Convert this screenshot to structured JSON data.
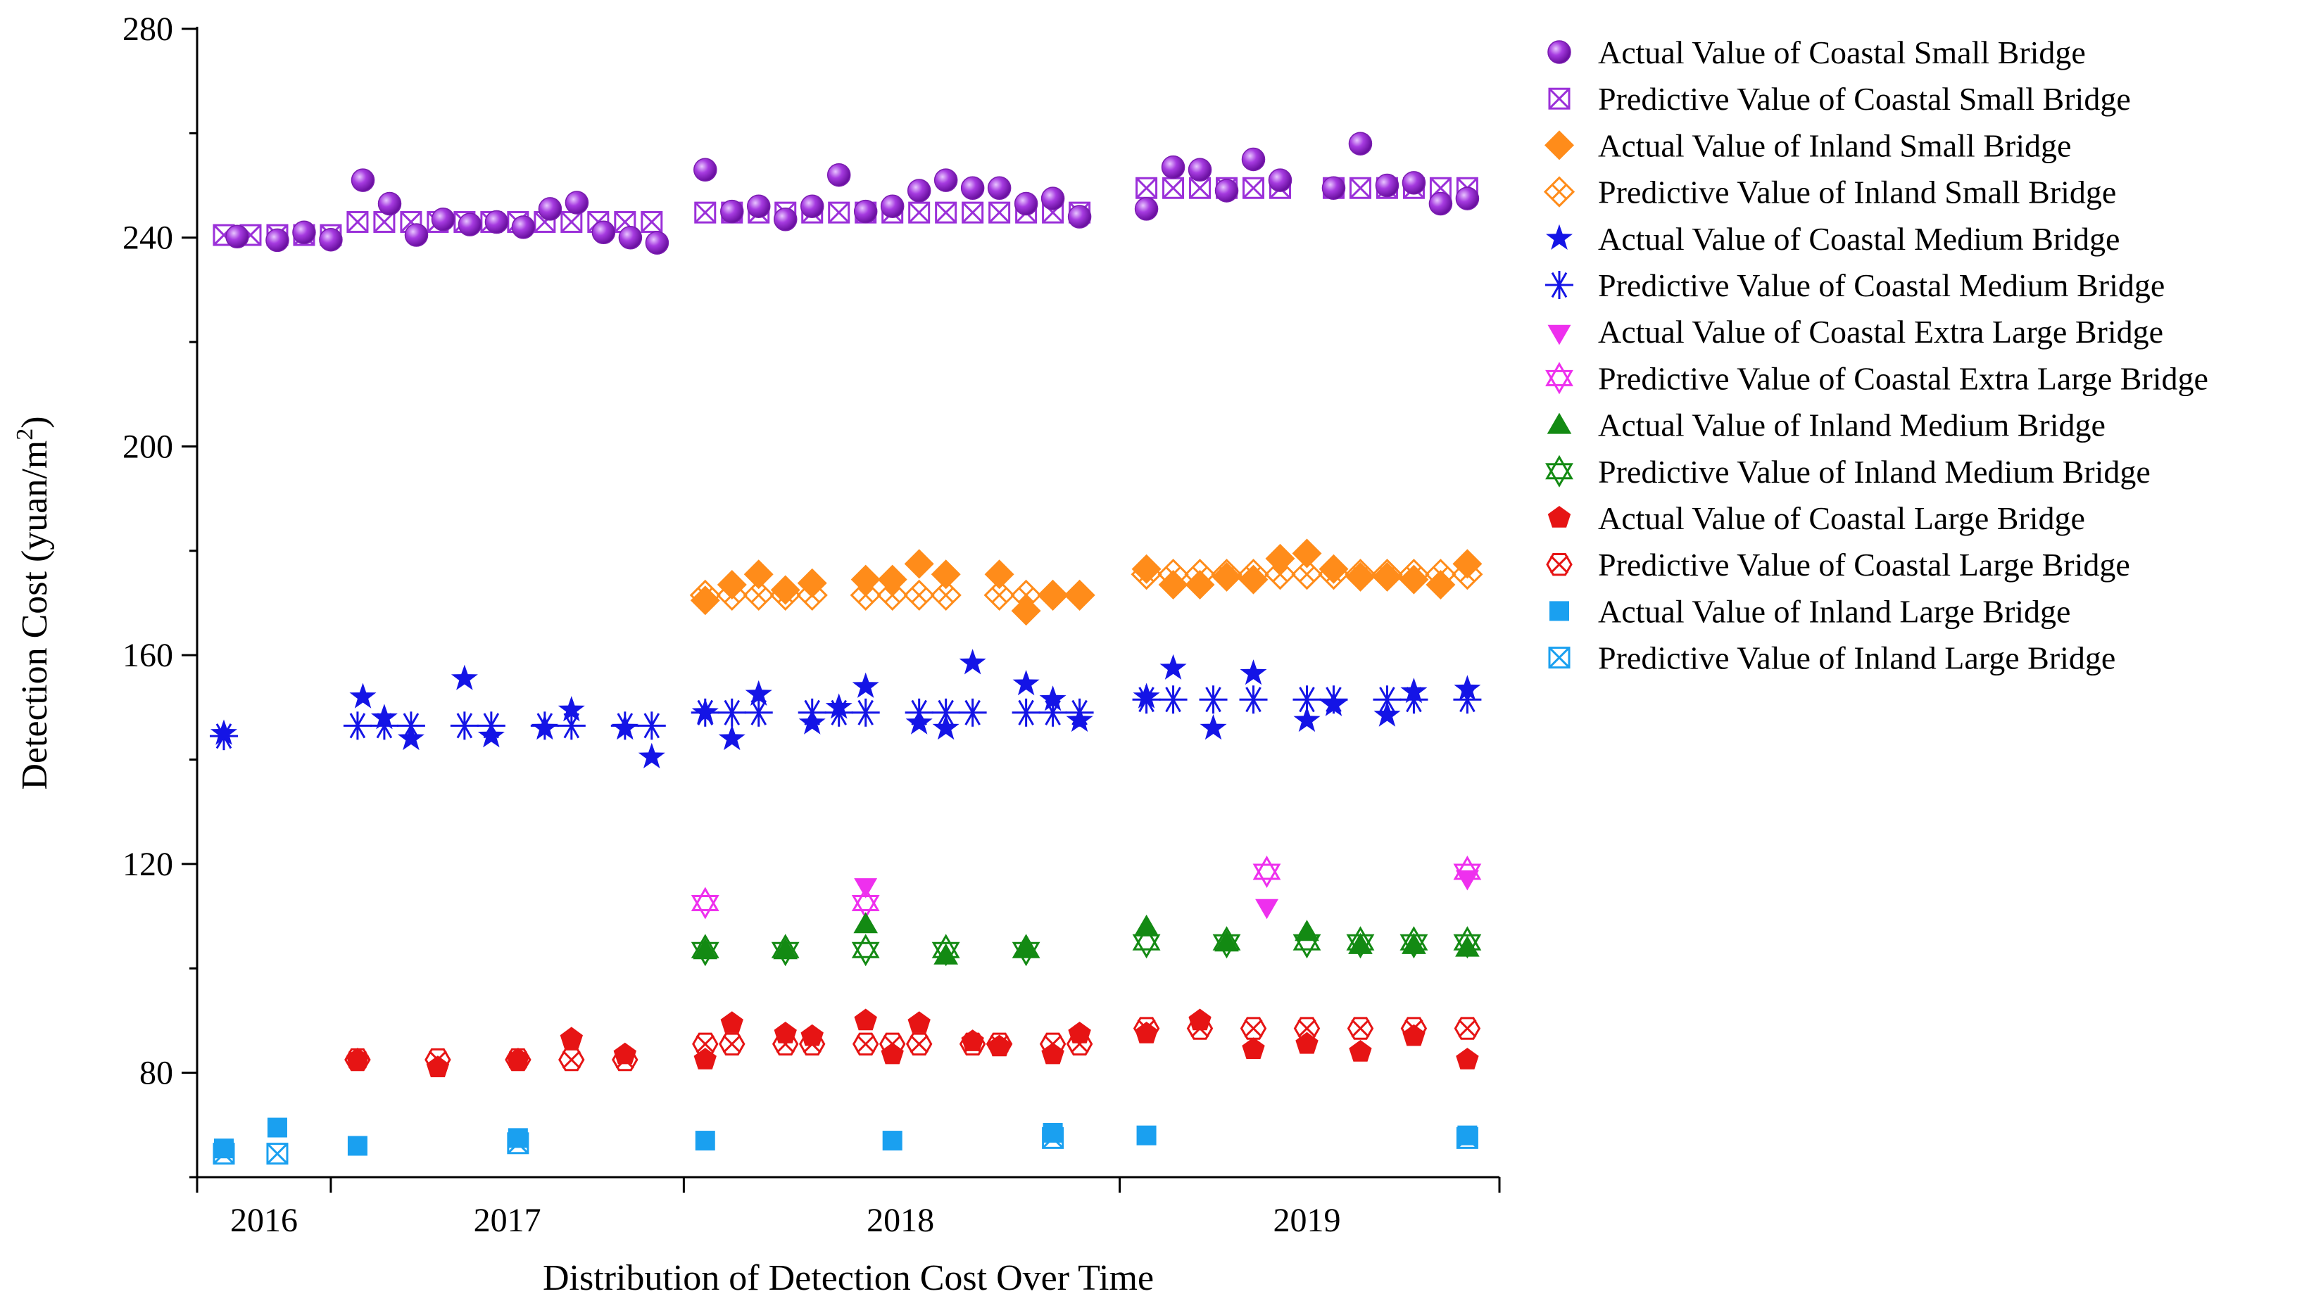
{
  "chart_data": {
    "type": "scatter",
    "xlabel": "Distribution of Detection Cost Over Time",
    "ylabel": "Detection Cost (yuan/m",
    "ylabel_sup": "2",
    "ylabel_close": ")",
    "xlim": [
      0,
      48.7
    ],
    "ylim": [
      60,
      280
    ],
    "yticks": [
      80,
      120,
      160,
      200,
      240,
      280
    ],
    "year_bounds": [
      0,
      5,
      18.2,
      34.5,
      48.7
    ],
    "years": [
      {
        "label": "2016",
        "center": 2.5
      },
      {
        "label": "2017",
        "center": 11.6
      },
      {
        "label": "2018",
        "center": 26.3
      },
      {
        "label": "2019",
        "center": 41.5
      }
    ],
    "legend": [
      {
        "series": "csb_act",
        "label": "Actual Value of Coastal Small Bridge",
        "marker": "sphere",
        "color": "#9b30d9"
      },
      {
        "series": "csb_pred",
        "label": "Predictive Value of Coastal Small Bridge",
        "marker": "xsquare",
        "color": "#9b30d9"
      },
      {
        "series": "isb_act",
        "label": "Actual Value of  Inland Small Bridge",
        "marker": "diamond",
        "color": "#ff8c1a"
      },
      {
        "series": "isb_pred",
        "label": "Predictive Value of Inland Small Bridge",
        "marker": "xdiamond",
        "color": "#ff8c1a"
      },
      {
        "series": "cmb_act",
        "label": "Actual Value of  Coastal Medium Bridge",
        "marker": "star",
        "color": "#1414e6"
      },
      {
        "series": "cmb_pred",
        "label": "Predictive Value of  Coastal Medium Bridge",
        "marker": "asterisk",
        "color": "#1414e6"
      },
      {
        "series": "celb_act",
        "label": "Actual Value of  Coastal Extra Large Bridge",
        "marker": "tridown",
        "color": "#ee30ee"
      },
      {
        "series": "celb_pred",
        "label": "Predictive Value of Coastal Extra Large Bridge",
        "marker": "xtridown",
        "color": "#ee30ee"
      },
      {
        "series": "imb_act",
        "label": "Actual Value of  Inland Medium Bridge",
        "marker": "triup",
        "color": "#138a13"
      },
      {
        "series": "imb_pred",
        "label": "Predictive Value of  Inland Medium Bridge",
        "marker": "xtriup",
        "color": "#138a13"
      },
      {
        "series": "clb_act",
        "label": "Actual Value of  Coastal Large Bridge",
        "marker": "pentagon",
        "color": "#e61414"
      },
      {
        "series": "clb_pred",
        "label": "Predictive Value of Coastal Large Bridge",
        "marker": "xhex",
        "color": "#e61414"
      },
      {
        "series": "ilb_act",
        "label": "Actual Value of  Inland Large Bridge",
        "marker": "square",
        "color": "#1aa0f0"
      },
      {
        "series": "ilb_pred",
        "label": "Predictive Value of Inland Large Bridge",
        "marker": "xsquare",
        "color": "#1aa0f0"
      }
    ],
    "series": {
      "csb_act": [
        [
          1.5,
          240.2
        ],
        [
          3,
          239.5
        ],
        [
          4,
          241
        ],
        [
          5,
          239.6
        ],
        [
          6.2,
          251
        ],
        [
          7.2,
          246.5
        ],
        [
          8.2,
          240.5
        ],
        [
          9.2,
          243.5
        ],
        [
          10.2,
          242.5
        ],
        [
          11.2,
          243
        ],
        [
          12.2,
          242
        ],
        [
          13.2,
          245.5
        ],
        [
          14.2,
          246.7
        ],
        [
          15.2,
          241
        ],
        [
          16.2,
          240
        ],
        [
          17.2,
          239
        ],
        [
          19,
          253
        ],
        [
          20,
          245
        ],
        [
          21,
          246
        ],
        [
          22,
          243.5
        ],
        [
          23,
          246
        ],
        [
          24,
          252
        ],
        [
          25,
          245
        ],
        [
          26,
          246
        ],
        [
          27,
          249
        ],
        [
          28,
          251
        ],
        [
          29,
          249.5
        ],
        [
          30,
          249.5
        ],
        [
          31,
          246.5
        ],
        [
          32,
          247.5
        ],
        [
          33,
          244
        ],
        [
          35.5,
          245.5
        ],
        [
          36.5,
          253.5
        ],
        [
          37.5,
          253
        ],
        [
          38.5,
          249
        ],
        [
          39.5,
          255
        ],
        [
          40.5,
          251
        ],
        [
          42.5,
          249.5
        ],
        [
          43.5,
          258
        ],
        [
          44.5,
          250
        ],
        [
          45.5,
          250.5
        ],
        [
          46.5,
          246.5
        ],
        [
          47.5,
          247.5
        ]
      ],
      "csb_pred": [
        [
          1,
          240.5
        ],
        [
          2,
          240.5
        ],
        [
          3,
          240.5
        ],
        [
          4,
          240.5
        ],
        [
          5,
          240.5
        ],
        [
          6,
          243
        ],
        [
          7,
          243
        ],
        [
          8,
          243
        ],
        [
          9,
          243
        ],
        [
          10,
          243
        ],
        [
          11,
          243
        ],
        [
          12,
          243
        ],
        [
          13,
          243
        ],
        [
          14,
          243
        ],
        [
          15,
          243
        ],
        [
          16,
          243
        ],
        [
          17,
          243
        ],
        [
          19,
          244.8
        ],
        [
          20,
          244.8
        ],
        [
          21,
          244.8
        ],
        [
          22,
          244.8
        ],
        [
          23,
          244.8
        ],
        [
          24,
          244.8
        ],
        [
          25,
          244.8
        ],
        [
          26,
          244.8
        ],
        [
          27,
          244.8
        ],
        [
          28,
          244.8
        ],
        [
          29,
          244.8
        ],
        [
          30,
          244.8
        ],
        [
          31,
          244.8
        ],
        [
          32,
          244.8
        ],
        [
          33,
          244.8
        ],
        [
          35.5,
          249.5
        ],
        [
          36.5,
          249.5
        ],
        [
          37.5,
          249.5
        ],
        [
          38.5,
          249.5
        ],
        [
          39.5,
          249.5
        ],
        [
          40.5,
          249.5
        ],
        [
          42.5,
          249.5
        ],
        [
          43.5,
          249.5
        ],
        [
          44.5,
          249.5
        ],
        [
          45.5,
          249.5
        ],
        [
          46.5,
          249.5
        ],
        [
          47.5,
          249.5
        ]
      ],
      "isb_act": [
        [
          19,
          170.5
        ],
        [
          20,
          173.5
        ],
        [
          21,
          175.5
        ],
        [
          22,
          172.5
        ],
        [
          23,
          173.8
        ],
        [
          25,
          174.5
        ],
        [
          26,
          174.5
        ],
        [
          27,
          177.5
        ],
        [
          28,
          175.5
        ],
        [
          30,
          175.5
        ],
        [
          31,
          168.5
        ],
        [
          32,
          171.5
        ],
        [
          33,
          171.5
        ],
        [
          35.5,
          176.5
        ],
        [
          36.5,
          173.5
        ],
        [
          37.5,
          173.5
        ],
        [
          38.5,
          175
        ],
        [
          39.5,
          174.5
        ],
        [
          40.5,
          178.5
        ],
        [
          41.5,
          179.5
        ],
        [
          42.5,
          176.5
        ],
        [
          43.5,
          175
        ],
        [
          44.5,
          175
        ],
        [
          45.5,
          174.5
        ],
        [
          46.5,
          173.5
        ],
        [
          47.5,
          177.5
        ]
      ],
      "isb_pred": [
        [
          19,
          171.5
        ],
        [
          20,
          171.5
        ],
        [
          21,
          171.5
        ],
        [
          22,
          171.5
        ],
        [
          23,
          171.5
        ],
        [
          25,
          171.5
        ],
        [
          26,
          171.5
        ],
        [
          27,
          171.5
        ],
        [
          28,
          171.5
        ],
        [
          30,
          171.5
        ],
        [
          31,
          171.5
        ],
        [
          32,
          171.5
        ],
        [
          33,
          171.5
        ],
        [
          35.5,
          175.5
        ],
        [
          36.5,
          175.5
        ],
        [
          37.5,
          175.5
        ],
        [
          38.5,
          175.5
        ],
        [
          39.5,
          175.5
        ],
        [
          40.5,
          175.5
        ],
        [
          41.5,
          175.5
        ],
        [
          42.5,
          175.5
        ],
        [
          43.5,
          175.5
        ],
        [
          44.5,
          175.5
        ],
        [
          45.5,
          175.5
        ],
        [
          46.5,
          175.5
        ],
        [
          47.5,
          175.5
        ]
      ],
      "cmb_act": [
        [
          1,
          145
        ],
        [
          6.2,
          152
        ],
        [
          7,
          148
        ],
        [
          8,
          144
        ],
        [
          10,
          155.5
        ],
        [
          11,
          144.5
        ],
        [
          13,
          146
        ],
        [
          14,
          149.5
        ],
        [
          16,
          146
        ],
        [
          17,
          140.5
        ],
        [
          19,
          149
        ],
        [
          20,
          144
        ],
        [
          21,
          152.5
        ],
        [
          23,
          147
        ],
        [
          24,
          150
        ],
        [
          25,
          154
        ],
        [
          27,
          147
        ],
        [
          28,
          146
        ],
        [
          29,
          158.5
        ],
        [
          31,
          154.5
        ],
        [
          32,
          151.5
        ],
        [
          33,
          147.5
        ],
        [
          35.5,
          152
        ],
        [
          36.5,
          157.5
        ],
        [
          38,
          146
        ],
        [
          39.5,
          156.5
        ],
        [
          41.5,
          147.5
        ],
        [
          42.5,
          150.5
        ],
        [
          44.5,
          148.5
        ],
        [
          45.5,
          153
        ],
        [
          47.5,
          153.5
        ]
      ],
      "cmb_pred": [
        [
          1,
          144.5
        ],
        [
          6,
          146.5
        ],
        [
          7,
          146.5
        ],
        [
          8,
          146.5
        ],
        [
          10,
          146.5
        ],
        [
          11,
          146.5
        ],
        [
          13,
          146.5
        ],
        [
          14,
          146.5
        ],
        [
          16,
          146.5
        ],
        [
          17,
          146.5
        ],
        [
          19,
          149
        ],
        [
          20,
          149
        ],
        [
          21,
          149
        ],
        [
          23,
          149
        ],
        [
          24,
          149
        ],
        [
          25,
          149
        ],
        [
          27,
          149
        ],
        [
          28,
          149
        ],
        [
          29,
          149
        ],
        [
          31,
          149
        ],
        [
          32,
          149
        ],
        [
          33,
          149
        ],
        [
          35.5,
          151.5
        ],
        [
          36.5,
          151.5
        ],
        [
          38,
          151.5
        ],
        [
          39.5,
          151.5
        ],
        [
          41.5,
          151.5
        ],
        [
          42.5,
          151.5
        ],
        [
          44.5,
          151.5
        ],
        [
          45.5,
          151.5
        ],
        [
          47.5,
          151.5
        ]
      ],
      "celb_act": [
        [
          25,
          116
        ],
        [
          40,
          112
        ],
        [
          47.5,
          117.5
        ]
      ],
      "celb_pred": [
        [
          19,
          112.5
        ],
        [
          25,
          112.5
        ],
        [
          40,
          118.5
        ],
        [
          47.5,
          118.5
        ]
      ],
      "imb_act": [
        [
          19,
          103.5
        ],
        [
          22,
          103.5
        ],
        [
          25,
          108.5
        ],
        [
          28,
          102.5
        ],
        [
          31,
          104
        ],
        [
          35.5,
          108
        ],
        [
          38.5,
          105
        ],
        [
          41.5,
          107
        ],
        [
          43.5,
          104.5
        ],
        [
          45.5,
          104.5
        ],
        [
          47.5,
          104
        ]
      ],
      "imb_pred": [
        [
          19,
          103.5
        ],
        [
          22,
          103.5
        ],
        [
          25,
          103.5
        ],
        [
          28,
          103.5
        ],
        [
          31,
          103.5
        ],
        [
          35.5,
          105
        ],
        [
          38.5,
          105
        ],
        [
          41.5,
          105
        ],
        [
          43.5,
          105
        ],
        [
          45.5,
          105
        ],
        [
          47.5,
          105
        ]
      ],
      "clb_act": [
        [
          6,
          82.5
        ],
        [
          9,
          81
        ],
        [
          12,
          82.5
        ],
        [
          14,
          86.5
        ],
        [
          16,
          83.5
        ],
        [
          19,
          82.5
        ],
        [
          20,
          89.5
        ],
        [
          22,
          87.5
        ],
        [
          23,
          87
        ],
        [
          25,
          90
        ],
        [
          26,
          83.5
        ],
        [
          27,
          89.5
        ],
        [
          29,
          86
        ],
        [
          30,
          85
        ],
        [
          32,
          83.5
        ],
        [
          33,
          87.5
        ],
        [
          35.5,
          87.5
        ],
        [
          37.5,
          90
        ],
        [
          39.5,
          84.5
        ],
        [
          41.5,
          85.5
        ],
        [
          43.5,
          84
        ],
        [
          45.5,
          87
        ],
        [
          47.5,
          82.5
        ]
      ],
      "clb_pred": [
        [
          6,
          82.5
        ],
        [
          9,
          82.5
        ],
        [
          12,
          82.5
        ],
        [
          14,
          82.5
        ],
        [
          16,
          82.5
        ],
        [
          19,
          85.5
        ],
        [
          20,
          85.5
        ],
        [
          22,
          85.5
        ],
        [
          23,
          85.5
        ],
        [
          25,
          85.5
        ],
        [
          26,
          85.5
        ],
        [
          27,
          85.5
        ],
        [
          29,
          85.5
        ],
        [
          30,
          85.5
        ],
        [
          32,
          85.5
        ],
        [
          33,
          85.5
        ],
        [
          35.5,
          88.5
        ],
        [
          37.5,
          88.5
        ],
        [
          39.5,
          88.5
        ],
        [
          41.5,
          88.5
        ],
        [
          43.5,
          88.5
        ],
        [
          45.5,
          88.5
        ],
        [
          47.5,
          88.5
        ]
      ],
      "ilb_act": [
        [
          1,
          65.5
        ],
        [
          3,
          69.5
        ],
        [
          6,
          66
        ],
        [
          12,
          67.5
        ],
        [
          19,
          67
        ],
        [
          26,
          67
        ],
        [
          32,
          68.5
        ],
        [
          35.5,
          68
        ],
        [
          47.5,
          68
        ]
      ],
      "ilb_pred": [
        [
          1,
          64.5
        ],
        [
          3,
          64.5
        ],
        [
          12,
          66.5
        ],
        [
          32,
          67.5
        ],
        [
          47.5,
          67.5
        ]
      ]
    }
  }
}
